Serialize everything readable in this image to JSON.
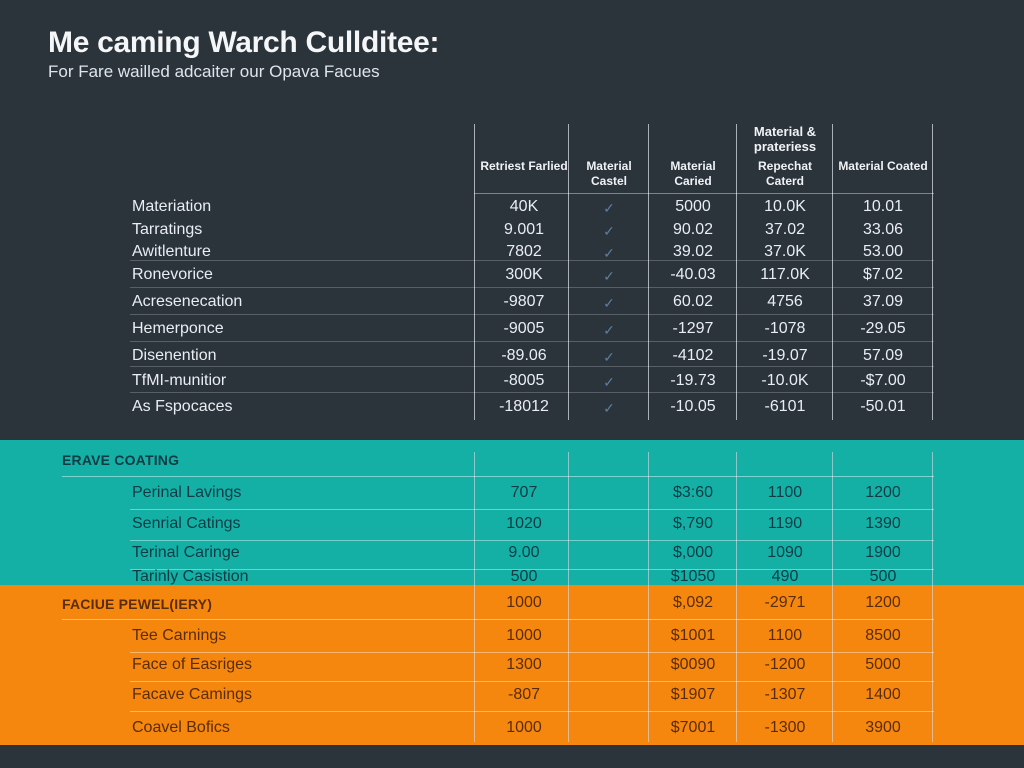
{
  "header": {
    "title": "Me caming Warch Cullditeе:",
    "subtitle": "For Fare wailled adcaiter our Opava Facues"
  },
  "columns": {
    "col1": "Retriest Farlied",
    "col2": "Material Castel",
    "col3": "Material Caried",
    "col4_top": "Material & prateriess",
    "col4": "Repechat Caterd",
    "col5": "Material Coated"
  },
  "top_rows": [
    {
      "label": "Materiation",
      "v1": "40K",
      "v3": "5000",
      "v4": "10.0K",
      "v5": "10.01"
    },
    {
      "label": "Tarratings",
      "v1": "9.001",
      "v3": "90.02",
      "v4": "37.02",
      "v5": "33.06"
    },
    {
      "label": "Awitlenture",
      "v1": "7802",
      "v3": "39.02",
      "v4": "37.0K",
      "v5": "53.00"
    },
    {
      "label": "Ronevorice",
      "v1": "300K",
      "v3": "-40.03",
      "v4": "117.0K",
      "v5": "$7.02"
    },
    {
      "label": "Acresenecation",
      "v1": "-9807",
      "v3": "60.02",
      "v4": "4756",
      "v5": "37.09"
    },
    {
      "label": "Hemerponce",
      "v1": "-9005",
      "v3": "-1297",
      "v4": "-1078",
      "v5": "-29.05"
    },
    {
      "label": "Disenention",
      "v1": "-89.06",
      "v3": "-4102",
      "v4": "-19.07",
      "v5": "57.09"
    },
    {
      "label": "TfMI-munitior",
      "v1": "-8005",
      "v3": "-19.73",
      "v4": "-10.0K",
      "v5": "-$7.00"
    },
    {
      "label": "As Fspocaces",
      "v1": "-18012",
      "v3": "-10.05",
      "v4": "-6101",
      "v5": "-50.01"
    }
  ],
  "check_glyph": "✓",
  "teal_section": {
    "title": "ERAVE COATING",
    "rows": [
      {
        "label": "Perinal Lavings",
        "v1": "707",
        "v3": "$3:60",
        "v4": "1100",
        "v5": "1200"
      },
      {
        "label": "Senrial Catings",
        "v1": "1020",
        "v3": "$,790",
        "v4": "1190",
        "v5": "1390"
      },
      {
        "label": "Terinal Caringe",
        "v1": "9.00",
        "v3": "$,000",
        "v4": "1090",
        "v5": "1900"
      },
      {
        "label": "Tarinly Casistion",
        "v1": "500",
        "v3": "$1050",
        "v4": "490",
        "v5": "500"
      }
    ]
  },
  "orange_section": {
    "title": "FACIUE PEWEL(IERY)",
    "title_row": {
      "v1": "1000",
      "v3": "$,092",
      "v4": "-2971",
      "v5": "1200"
    },
    "rows": [
      {
        "label": "Tee Carnings",
        "v1": "1000",
        "v3": "$1001",
        "v4": "1100",
        "v5": "8500"
      },
      {
        "label": "Face of Easriges",
        "v1": "1300",
        "v3": "$0090",
        "v4": "-1200",
        "v5": "5000"
      },
      {
        "label": "Facave Camings",
        "v1": "-807",
        "v3": "$1907",
        "v4": "-1307",
        "v5": "1400"
      },
      {
        "label": "Coavel Bofics",
        "v1": "1000",
        "v3": "$7001",
        "v4": "-1300",
        "v5": "3900"
      }
    ]
  }
}
